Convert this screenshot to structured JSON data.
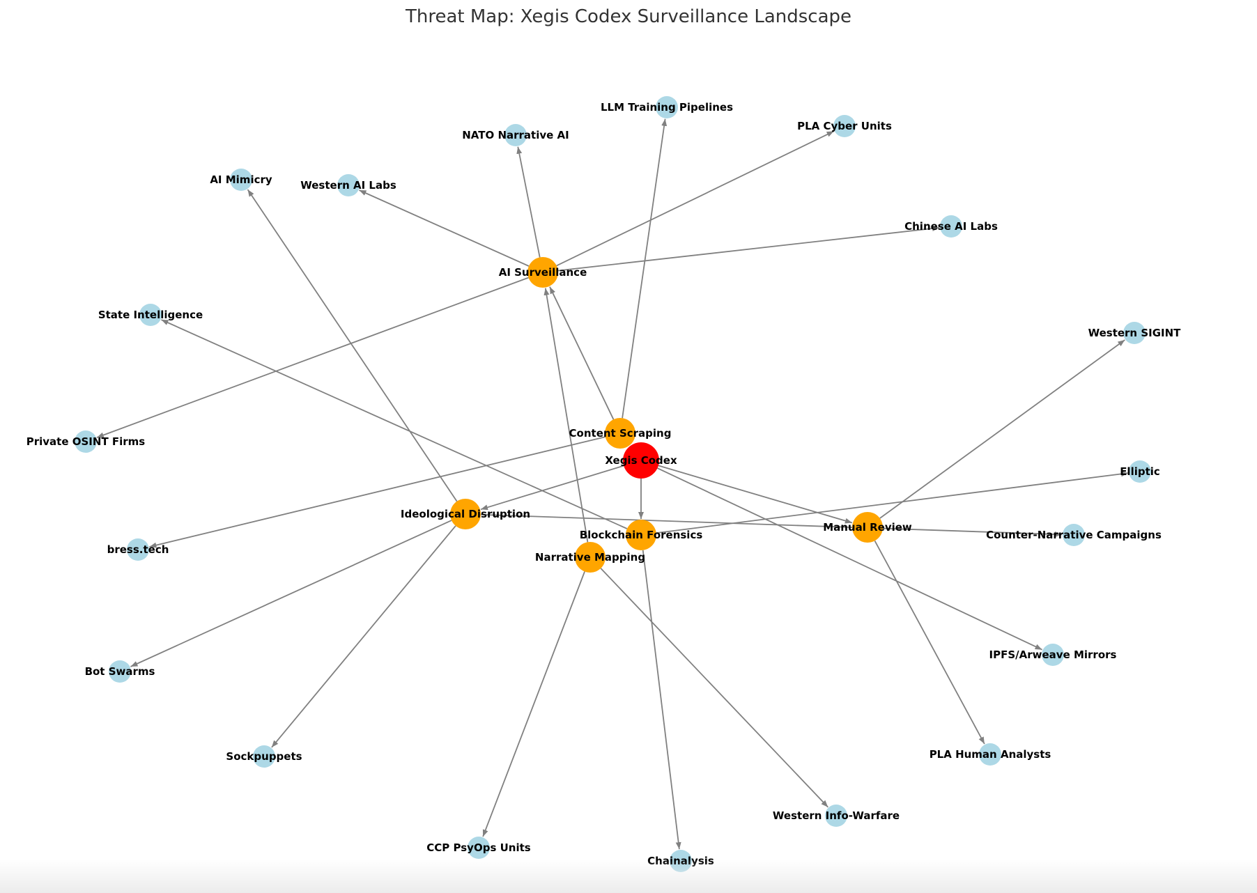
{
  "diagram": {
    "title": "Threat Map: Xegis Codex Surveillance Landscape",
    "colors": {
      "core": "#ff0000",
      "vector": "#ffa500",
      "actor": "#add8e6",
      "edge": "#808080",
      "label": "#000000"
    },
    "nodes": [
      {
        "id": "xegis",
        "label": "Xegis Codex",
        "kind": "core"
      },
      {
        "id": "ai_surv",
        "label": "AI Surveillance",
        "kind": "vector"
      },
      {
        "id": "content",
        "label": "Content Scraping",
        "kind": "vector"
      },
      {
        "id": "ideo",
        "label": "Ideological Disruption",
        "kind": "vector"
      },
      {
        "id": "block",
        "label": "Blockchain Forensics",
        "kind": "vector"
      },
      {
        "id": "narr",
        "label": "Narrative Mapping",
        "kind": "vector"
      },
      {
        "id": "manual",
        "label": "Manual Review",
        "kind": "vector"
      },
      {
        "id": "llm",
        "label": "LLM Training Pipelines",
        "kind": "actor"
      },
      {
        "id": "nato",
        "label": "NATO Narrative AI",
        "kind": "actor"
      },
      {
        "id": "pla_cyber",
        "label": "PLA Cyber Units",
        "kind": "actor"
      },
      {
        "id": "ai_mim",
        "label": "AI Mimicry",
        "kind": "actor"
      },
      {
        "id": "west_ai",
        "label": "Western AI Labs",
        "kind": "actor"
      },
      {
        "id": "cn_ai",
        "label": "Chinese AI Labs",
        "kind": "actor"
      },
      {
        "id": "state",
        "label": "State Intelligence",
        "kind": "actor"
      },
      {
        "id": "sigint",
        "label": "Western SIGINT",
        "kind": "actor"
      },
      {
        "id": "osint",
        "label": "Private OSINT Firms",
        "kind": "actor"
      },
      {
        "id": "elliptic",
        "label": "Elliptic",
        "kind": "actor"
      },
      {
        "id": "bress",
        "label": "bress.tech",
        "kind": "actor"
      },
      {
        "id": "counter",
        "label": "Counter-Narrative Campaigns",
        "kind": "actor"
      },
      {
        "id": "ipfs",
        "label": "IPFS/Arweave Mirrors",
        "kind": "actor"
      },
      {
        "id": "bots",
        "label": "Bot Swarms",
        "kind": "actor"
      },
      {
        "id": "pla_human",
        "label": "PLA Human Analysts",
        "kind": "actor"
      },
      {
        "id": "sock",
        "label": "Sockpuppets",
        "kind": "actor"
      },
      {
        "id": "west_info",
        "label": "Western Info-Warfare",
        "kind": "actor"
      },
      {
        "id": "ccp",
        "label": "CCP PsyOps Units",
        "kind": "actor"
      },
      {
        "id": "chain",
        "label": "Chainalysis",
        "kind": "actor"
      }
    ],
    "edges": [
      {
        "from": "xegis",
        "to": "ideo"
      },
      {
        "from": "xegis",
        "to": "block"
      },
      {
        "from": "xegis",
        "to": "manual"
      },
      {
        "from": "xegis",
        "to": "ipfs"
      },
      {
        "from": "content",
        "to": "ai_surv"
      },
      {
        "from": "content",
        "to": "llm"
      },
      {
        "from": "content",
        "to": "bress"
      },
      {
        "from": "ai_surv",
        "to": "nato"
      },
      {
        "from": "ai_surv",
        "to": "west_ai"
      },
      {
        "from": "ai_surv",
        "to": "pla_cyber"
      },
      {
        "from": "ai_surv",
        "to": "cn_ai"
      },
      {
        "from": "ai_surv",
        "to": "osint"
      },
      {
        "from": "ideo",
        "to": "ai_mim"
      },
      {
        "from": "ideo",
        "to": "bots"
      },
      {
        "from": "ideo",
        "to": "sock"
      },
      {
        "from": "ideo",
        "to": "counter"
      },
      {
        "from": "block",
        "to": "state"
      },
      {
        "from": "block",
        "to": "elliptic"
      },
      {
        "from": "block",
        "to": "chain"
      },
      {
        "from": "narr",
        "to": "ai_surv"
      },
      {
        "from": "narr",
        "to": "ccp"
      },
      {
        "from": "narr",
        "to": "west_info"
      },
      {
        "from": "manual",
        "to": "sigint"
      },
      {
        "from": "manual",
        "to": "pla_human"
      }
    ]
  }
}
